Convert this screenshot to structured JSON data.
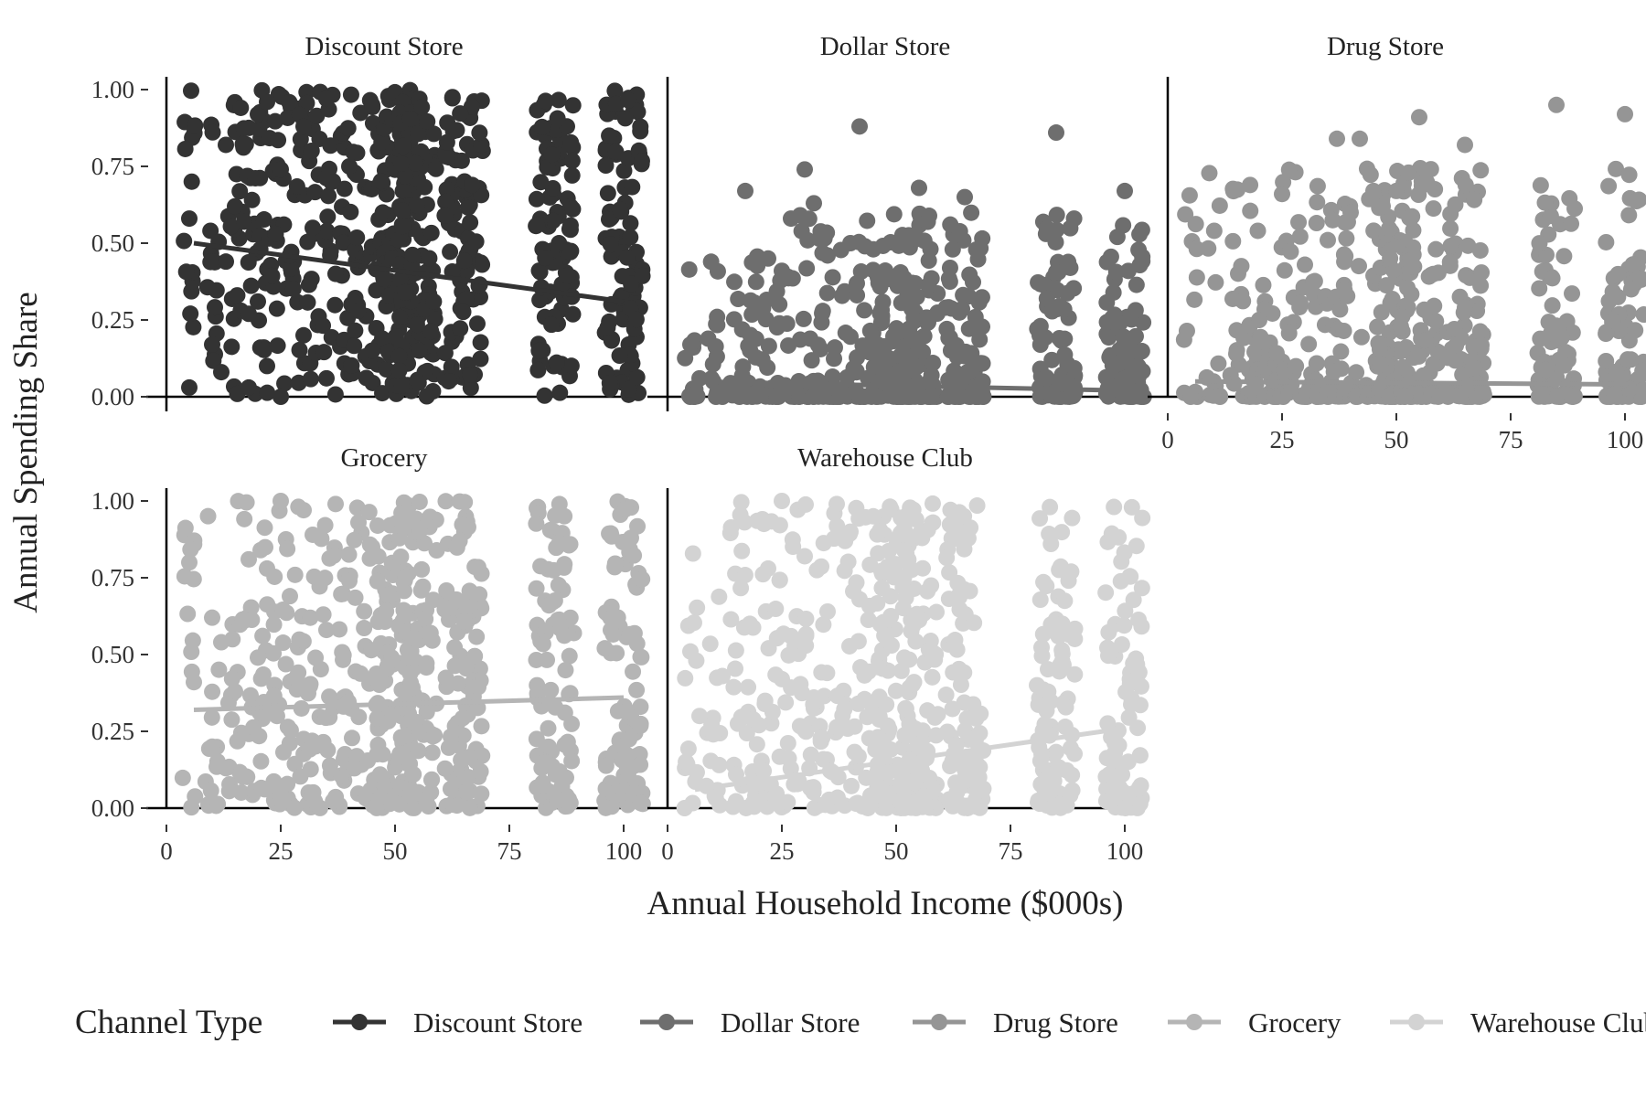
{
  "chart_data": {
    "type": "scatter",
    "xlabel": "Annual Household Income ($000s)",
    "ylabel": "Annual Spending Share",
    "xlim": [
      0,
      100
    ],
    "ylim": [
      0,
      1
    ],
    "x_ticks": [
      "0",
      "25",
      "50",
      "75",
      "100"
    ],
    "y_ticks": [
      "0.00",
      "0.25",
      "0.50",
      "0.75",
      "1.00"
    ],
    "grid": false,
    "legend": {
      "title": "Channel Type",
      "placement": "bottom",
      "entries": [
        "Discount Store",
        "Dollar Store",
        "Drug Store",
        "Grocery",
        "Warehouse Club"
      ]
    },
    "income_levels": [
      5,
      10,
      15,
      17.5,
      20,
      22.5,
      25,
      27.5,
      30,
      32.5,
      35,
      37.5,
      40,
      42.5,
      45,
      47.5,
      50,
      55,
      65,
      85,
      100
    ],
    "panels": [
      {
        "name": "Discount Store",
        "color": "#333333",
        "trend": [
          [
            6,
            0.5
          ],
          [
            100,
            0.31
          ]
        ],
        "points": [
          [
            5,
            0.58
          ],
          [
            5,
            0.03
          ],
          [
            10,
            0.17
          ],
          [
            12,
            0.08
          ],
          [
            13,
            0.82
          ],
          [
            13,
            0.44
          ],
          [
            15,
            0.62
          ],
          [
            17,
            0.57
          ],
          [
            18,
            0.27
          ],
          [
            18,
            0.03
          ],
          [
            20,
            0.92
          ],
          [
            20,
            0.31
          ],
          [
            22,
            0.96
          ],
          [
            22,
            0.1
          ],
          [
            25,
            0.74
          ],
          [
            25,
            0.0
          ],
          [
            27,
            0.46
          ],
          [
            30,
            0.88
          ],
          [
            30,
            0.2
          ],
          [
            32,
            0.55
          ],
          [
            35,
            0.97
          ],
          [
            35,
            0.06
          ],
          [
            37,
            0.4
          ],
          [
            40,
            0.75
          ],
          [
            42,
            0.28
          ],
          [
            45,
            0.95
          ],
          [
            45,
            0.15
          ]
        ]
      },
      {
        "name": "Dollar Store",
        "color": "#6e6e6e",
        "trend": [
          [
            6,
            0.05
          ],
          [
            100,
            0.02
          ]
        ],
        "points": [
          [
            5,
            0.17
          ],
          [
            7,
            0.06
          ],
          [
            12,
            0.0
          ],
          [
            17,
            0.67
          ],
          [
            22,
            0.45
          ],
          [
            25,
            0.41
          ],
          [
            27,
            0.58
          ],
          [
            30,
            0.74
          ],
          [
            32,
            0.63
          ],
          [
            35,
            0.46
          ],
          [
            40,
            0.5
          ],
          [
            42,
            0.88
          ],
          [
            45,
            0.48
          ],
          [
            55,
            0.68
          ],
          [
            65,
            0.65
          ],
          [
            85,
            0.86
          ],
          [
            100,
            0.67
          ]
        ]
      },
      {
        "name": "Drug Store",
        "color": "#959595",
        "trend": [
          [
            6,
            0.05
          ],
          [
            100,
            0.04
          ]
        ],
        "points": [
          [
            5,
            0.0
          ],
          [
            10,
            0.05
          ],
          [
            15,
            0.14
          ],
          [
            20,
            0.25
          ],
          [
            25,
            0.66
          ],
          [
            30,
            0.43
          ],
          [
            35,
            0.51
          ],
          [
            37,
            0.84
          ],
          [
            40,
            0.6
          ],
          [
            42,
            0.84
          ],
          [
            45,
            0.67
          ],
          [
            47,
            0.62
          ],
          [
            50,
            0.67
          ],
          [
            55,
            0.91
          ],
          [
            65,
            0.82
          ],
          [
            85,
            0.95
          ],
          [
            100,
            0.92
          ]
        ]
      },
      {
        "name": "Grocery",
        "color": "#b5b5b5",
        "trend": [
          [
            6,
            0.32
          ],
          [
            100,
            0.36
          ]
        ],
        "points": [
          [
            5,
            0.8
          ],
          [
            6,
            0.41
          ],
          [
            10,
            0.62
          ],
          [
            10,
            0.2
          ],
          [
            12,
            0.54
          ],
          [
            13,
            0.13
          ],
          [
            15,
            0.38
          ],
          [
            17,
            0.61
          ],
          [
            18,
            0.81
          ],
          [
            20,
            0.49
          ],
          [
            22,
            0.78
          ],
          [
            25,
            1.0
          ],
          [
            25,
            0.05
          ],
          [
            27,
            0.69
          ],
          [
            30,
            0.97
          ],
          [
            32,
            0.89
          ],
          [
            35,
            0.58
          ],
          [
            37,
            0.99
          ],
          [
            40,
            0.74
          ],
          [
            42,
            0.93
          ],
          [
            45,
            0.85
          ]
        ]
      },
      {
        "name": "Warehouse Club",
        "color": "#d3d3d3",
        "trend": [
          [
            6,
            0.06
          ],
          [
            100,
            0.26
          ]
        ],
        "points": [
          [
            5,
            0.51
          ],
          [
            7,
            0.3
          ],
          [
            10,
            0.24
          ],
          [
            12,
            0.43
          ],
          [
            15,
            0.11
          ],
          [
            18,
            0.6
          ],
          [
            20,
            0.27
          ],
          [
            22,
            0.78
          ],
          [
            25,
            1.0
          ],
          [
            25,
            0.42
          ],
          [
            27,
            0.56
          ],
          [
            30,
            0.82
          ],
          [
            32,
            0.36
          ],
          [
            35,
            0.64
          ],
          [
            37,
            0.99
          ],
          [
            40,
            0.9
          ],
          [
            42,
            0.68
          ],
          [
            45,
            0.95
          ]
        ]
      }
    ]
  }
}
